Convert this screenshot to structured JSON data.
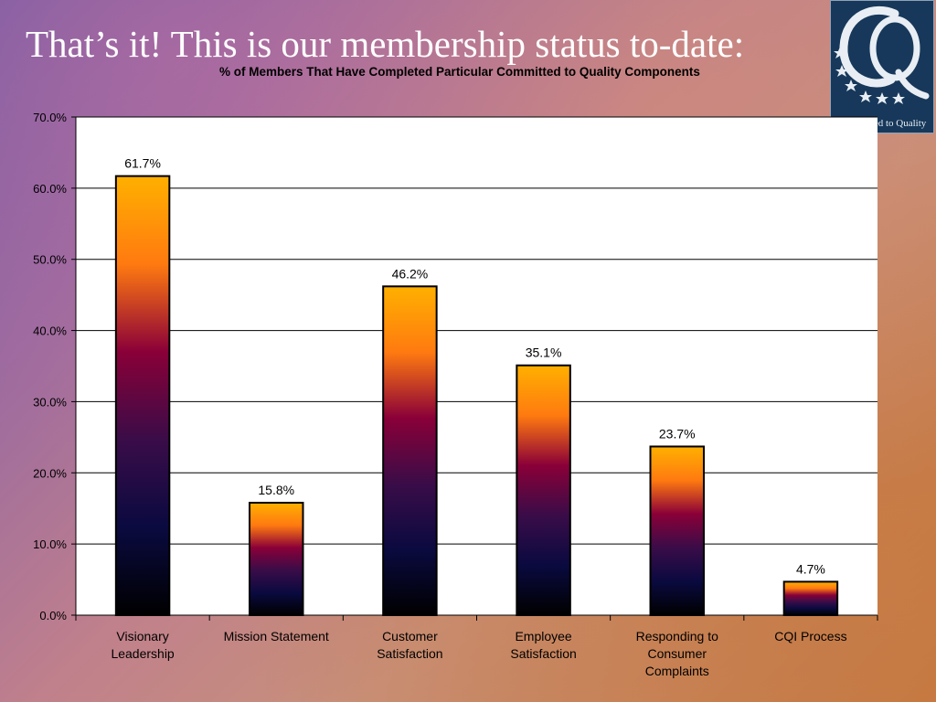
{
  "slide": {
    "title": "That’s it!  This is our membership status to-date:"
  },
  "logo": {
    "caption": "Committed to Quality",
    "colors": {
      "background": "#17385a",
      "mark": "#e8eef4"
    }
  },
  "chart_data": {
    "type": "bar",
    "title": "% of Members That Have Completed Particular Committed to Quality Components",
    "categories": [
      [
        "Visionary",
        "Leadership"
      ],
      [
        "Mission Statement"
      ],
      [
        "Customer",
        "Satisfaction"
      ],
      [
        "Employee",
        "Satisfaction"
      ],
      [
        "Responding to",
        "Consumer",
        "Complaints"
      ],
      [
        "CQI Process"
      ]
    ],
    "values": [
      61.7,
      15.8,
      46.2,
      35.1,
      23.7,
      4.7
    ],
    "data_labels": [
      "61.7%",
      "15.8%",
      "46.2%",
      "35.1%",
      "23.7%",
      "4.7%"
    ],
    "ylim": [
      0,
      70
    ],
    "yticks": [
      0,
      10,
      20,
      30,
      40,
      50,
      60,
      70
    ],
    "ytick_labels": [
      "0.0%",
      "10.0%",
      "20.0%",
      "30.0%",
      "40.0%",
      "50.0%",
      "60.0%",
      "70.0%"
    ],
    "grid": true,
    "legend": "none",
    "bar_gradient": [
      "#ffb000",
      "#ff7a10",
      "#8a0038",
      "#3a0c48",
      "#0a0a40",
      "#000000"
    ]
  }
}
